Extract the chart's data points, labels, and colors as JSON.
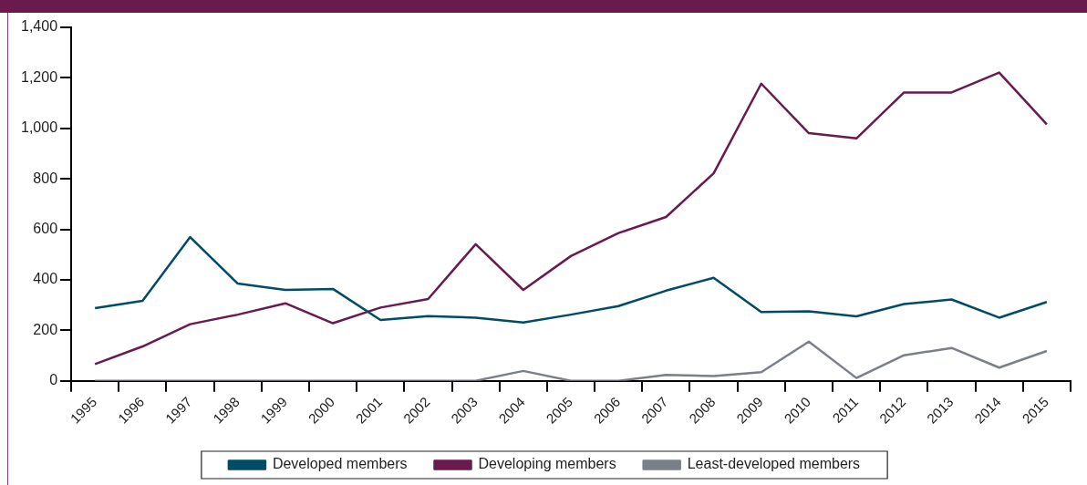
{
  "chart_data": {
    "type": "line",
    "categories": [
      "1995",
      "1996",
      "1997",
      "1998",
      "1999",
      "2000",
      "2001",
      "2002",
      "2003",
      "2004",
      "2005",
      "2006",
      "2007",
      "2008",
      "2009",
      "2010",
      "2011",
      "2012",
      "2013",
      "2014",
      "2015"
    ],
    "series": [
      {
        "name": "Developed members",
        "color": "#004c66",
        "values": [
          288,
          317,
          569,
          385,
          360,
          364,
          241,
          256,
          250,
          231,
          262,
          296,
          357,
          408,
          272,
          275,
          255,
          304,
          322,
          250,
          312
        ]
      },
      {
        "name": "Developing members",
        "color": "#6a1a4c",
        "values": [
          66,
          136,
          224,
          262,
          307,
          228,
          290,
          324,
          541,
          360,
          494,
          585,
          649,
          822,
          1177,
          981,
          960,
          1142,
          1142,
          1221,
          1016
        ]
      },
      {
        "name": "Least-developed members",
        "color": "#7a7f88",
        "values": [
          0,
          0,
          0,
          0,
          0,
          0,
          0,
          0,
          0,
          39,
          0,
          0,
          23,
          19,
          34,
          155,
          11,
          101,
          130,
          52,
          118
        ]
      }
    ],
    "ylim": [
      0,
      1400
    ],
    "yticks": [
      {
        "value": 0,
        "label": "0"
      },
      {
        "value": 200,
        "label": "200"
      },
      {
        "value": 400,
        "label": "400"
      },
      {
        "value": 600,
        "label": "600"
      },
      {
        "value": 800,
        "label": "800"
      },
      {
        "value": 1000,
        "label": "1,000"
      },
      {
        "value": 1200,
        "label": "1,200"
      },
      {
        "value": 1400,
        "label": "1,400"
      }
    ],
    "grid": false,
    "legend": "bottom",
    "marker": "none",
    "line_style": "solid"
  }
}
